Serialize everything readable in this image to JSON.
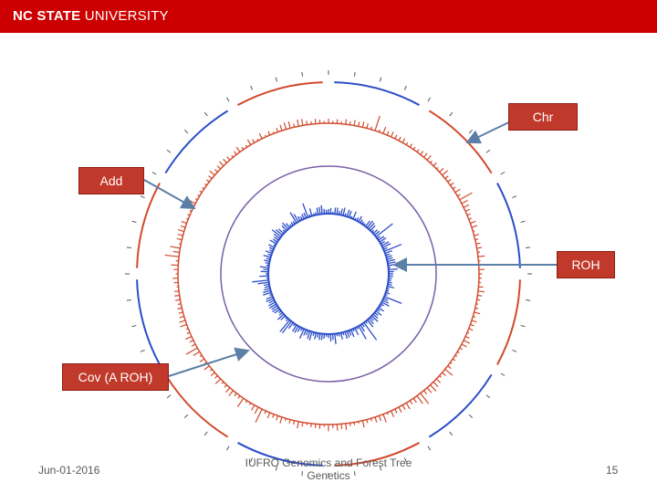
{
  "header": {
    "logo_bold": "NC STATE",
    "logo_rest": " UNIVERSITY",
    "banner_color": "#cc0000"
  },
  "callouts": {
    "chr": "Chr",
    "add": "Add",
    "roh": "ROH",
    "cov": "Cov (A ROH)"
  },
  "footer": {
    "date": "Jun-01-2016",
    "title_line1": "IUFRO Genomics and Forest Tree",
    "title_line2": "Genetics",
    "page": "15"
  },
  "colors": {
    "red": "#d24b2e",
    "blue": "#2d4fc8",
    "purple": "#7a5fa8",
    "arrow": "#5b7fa6"
  }
}
